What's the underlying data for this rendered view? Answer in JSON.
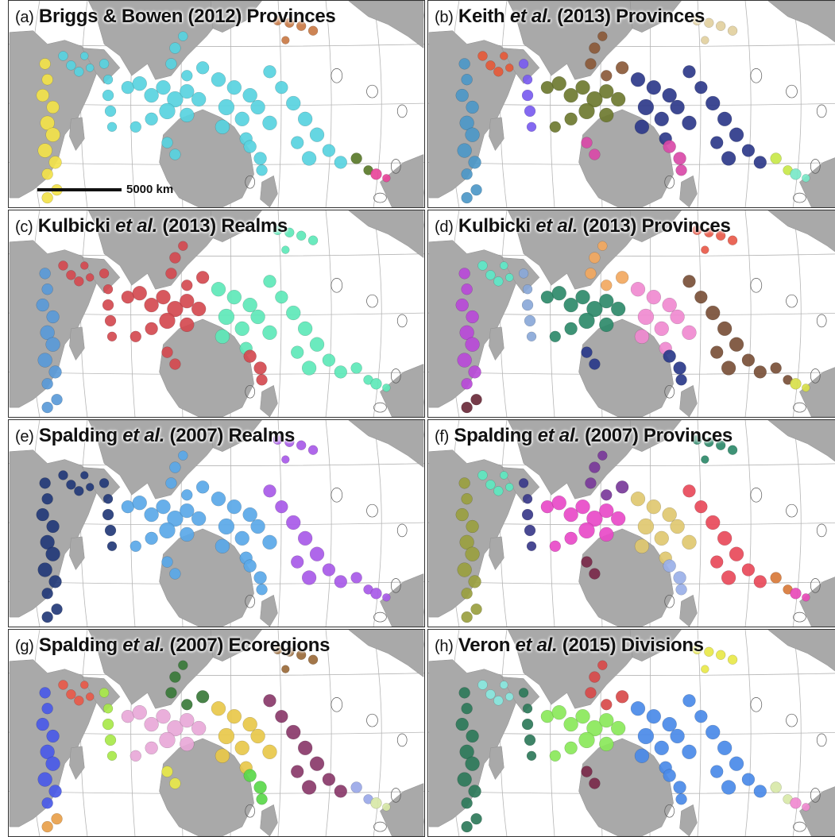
{
  "colors": {
    "land": "#a9a9a9",
    "grid": "#b5b5b5",
    "ocean": "#ffffff",
    "border": "#333333"
  },
  "scale_bar": {
    "label": "5000 km"
  },
  "panels": [
    {
      "id": "a",
      "label": "(a)",
      "title_pre": "Briggs & Bowen",
      "title_it": "",
      "title_post": "(2012) Provinces",
      "colors": [
        "#f2e24a",
        "#58d2e0",
        "#c97a45",
        "#5a7a2a",
        "#e8459a"
      ]
    },
    {
      "id": "b",
      "label": "(b)",
      "title_pre": "Keith",
      "title_it": "et al.",
      "title_post": "(2013) Provinces",
      "colors": [
        "#7a5cf0",
        "#e55a3a",
        "#4d98c8",
        "#b3a5e8",
        "#8b5a3a",
        "#6e7a30",
        "#2e3a8a",
        "#d94aa8",
        "#c8e84a",
        "#7ae8c8",
        "#e2d0a0"
      ]
    },
    {
      "id": "c",
      "label": "(c)",
      "title_pre": "Kulbicki",
      "title_it": "et al.",
      "title_post": "(2013) Realms",
      "colors": [
        "#5a9ad8",
        "#d44a50",
        "#5ee8b8"
      ]
    },
    {
      "id": "d",
      "label": "(d)",
      "title_pre": "Kulbicki",
      "title_it": "et al.",
      "title_post": "(2013) Provinces",
      "colors": [
        "#b84ad8",
        "#6a2a3a",
        "#5ee8c8",
        "#8aa8d8",
        "#2e8a6a",
        "#f2a860",
        "#f08ad0",
        "#2a3a8a",
        "#7a5038",
        "#e85a4a",
        "#d8e04a"
      ]
    },
    {
      "id": "e",
      "label": "(e)",
      "title_pre": "Spalding",
      "title_it": "et al.",
      "title_post": "(2007) Realms",
      "colors": [
        "#233a78",
        "#5aa8e8",
        "#a85ae8"
      ]
    },
    {
      "id": "f",
      "label": "(f)",
      "title_pre": "Spalding",
      "title_it": "et al.",
      "title_post": "(2007) Provinces",
      "colors": [
        "#9aa040",
        "#5ee8c0",
        "#3a3a8a",
        "#e84ac8",
        "#7a3a9a",
        "#8ab848",
        "#e0c870",
        "#7a2a4a",
        "#e84a5a",
        "#2e8a6a",
        "#e08aa0",
        "#9ab0e8",
        "#d87a3a",
        "#8a6a2a",
        "#e84ab8",
        "#5ae8e8"
      ]
    },
    {
      "id": "g",
      "label": "(g)",
      "title_pre": "Spalding",
      "title_it": "et al.",
      "title_post": "(2007) Ecoregions",
      "colors": [
        "#4a5ae8",
        "#e85a4a",
        "#a8e84a",
        "#e8a8d8",
        "#3a7a3a",
        "#e8c84a",
        "#8a3a6a",
        "#4ab8a8",
        "#c84a8a",
        "#9aa8e8",
        "#5ad84a",
        "#e8e84a",
        "#9a6a3a",
        "#6a3aa8",
        "#e8a04a",
        "#3a9ae8",
        "#d8e8a8"
      ]
    },
    {
      "id": "h",
      "label": "(h)",
      "title_pre": "Veron",
      "title_it": "et al.",
      "title_post": "(2015) Divisions",
      "colors": [
        "#2e7a5a",
        "#8ae8e0",
        "#8ae85a",
        "#d84a4a",
        "#b84ad8",
        "#8a5a2a",
        "#4a8ae8",
        "#d8e8a8",
        "#e8a870",
        "#e8e84a",
        "#f08ad0",
        "#7a2a4a"
      ]
    }
  ]
}
